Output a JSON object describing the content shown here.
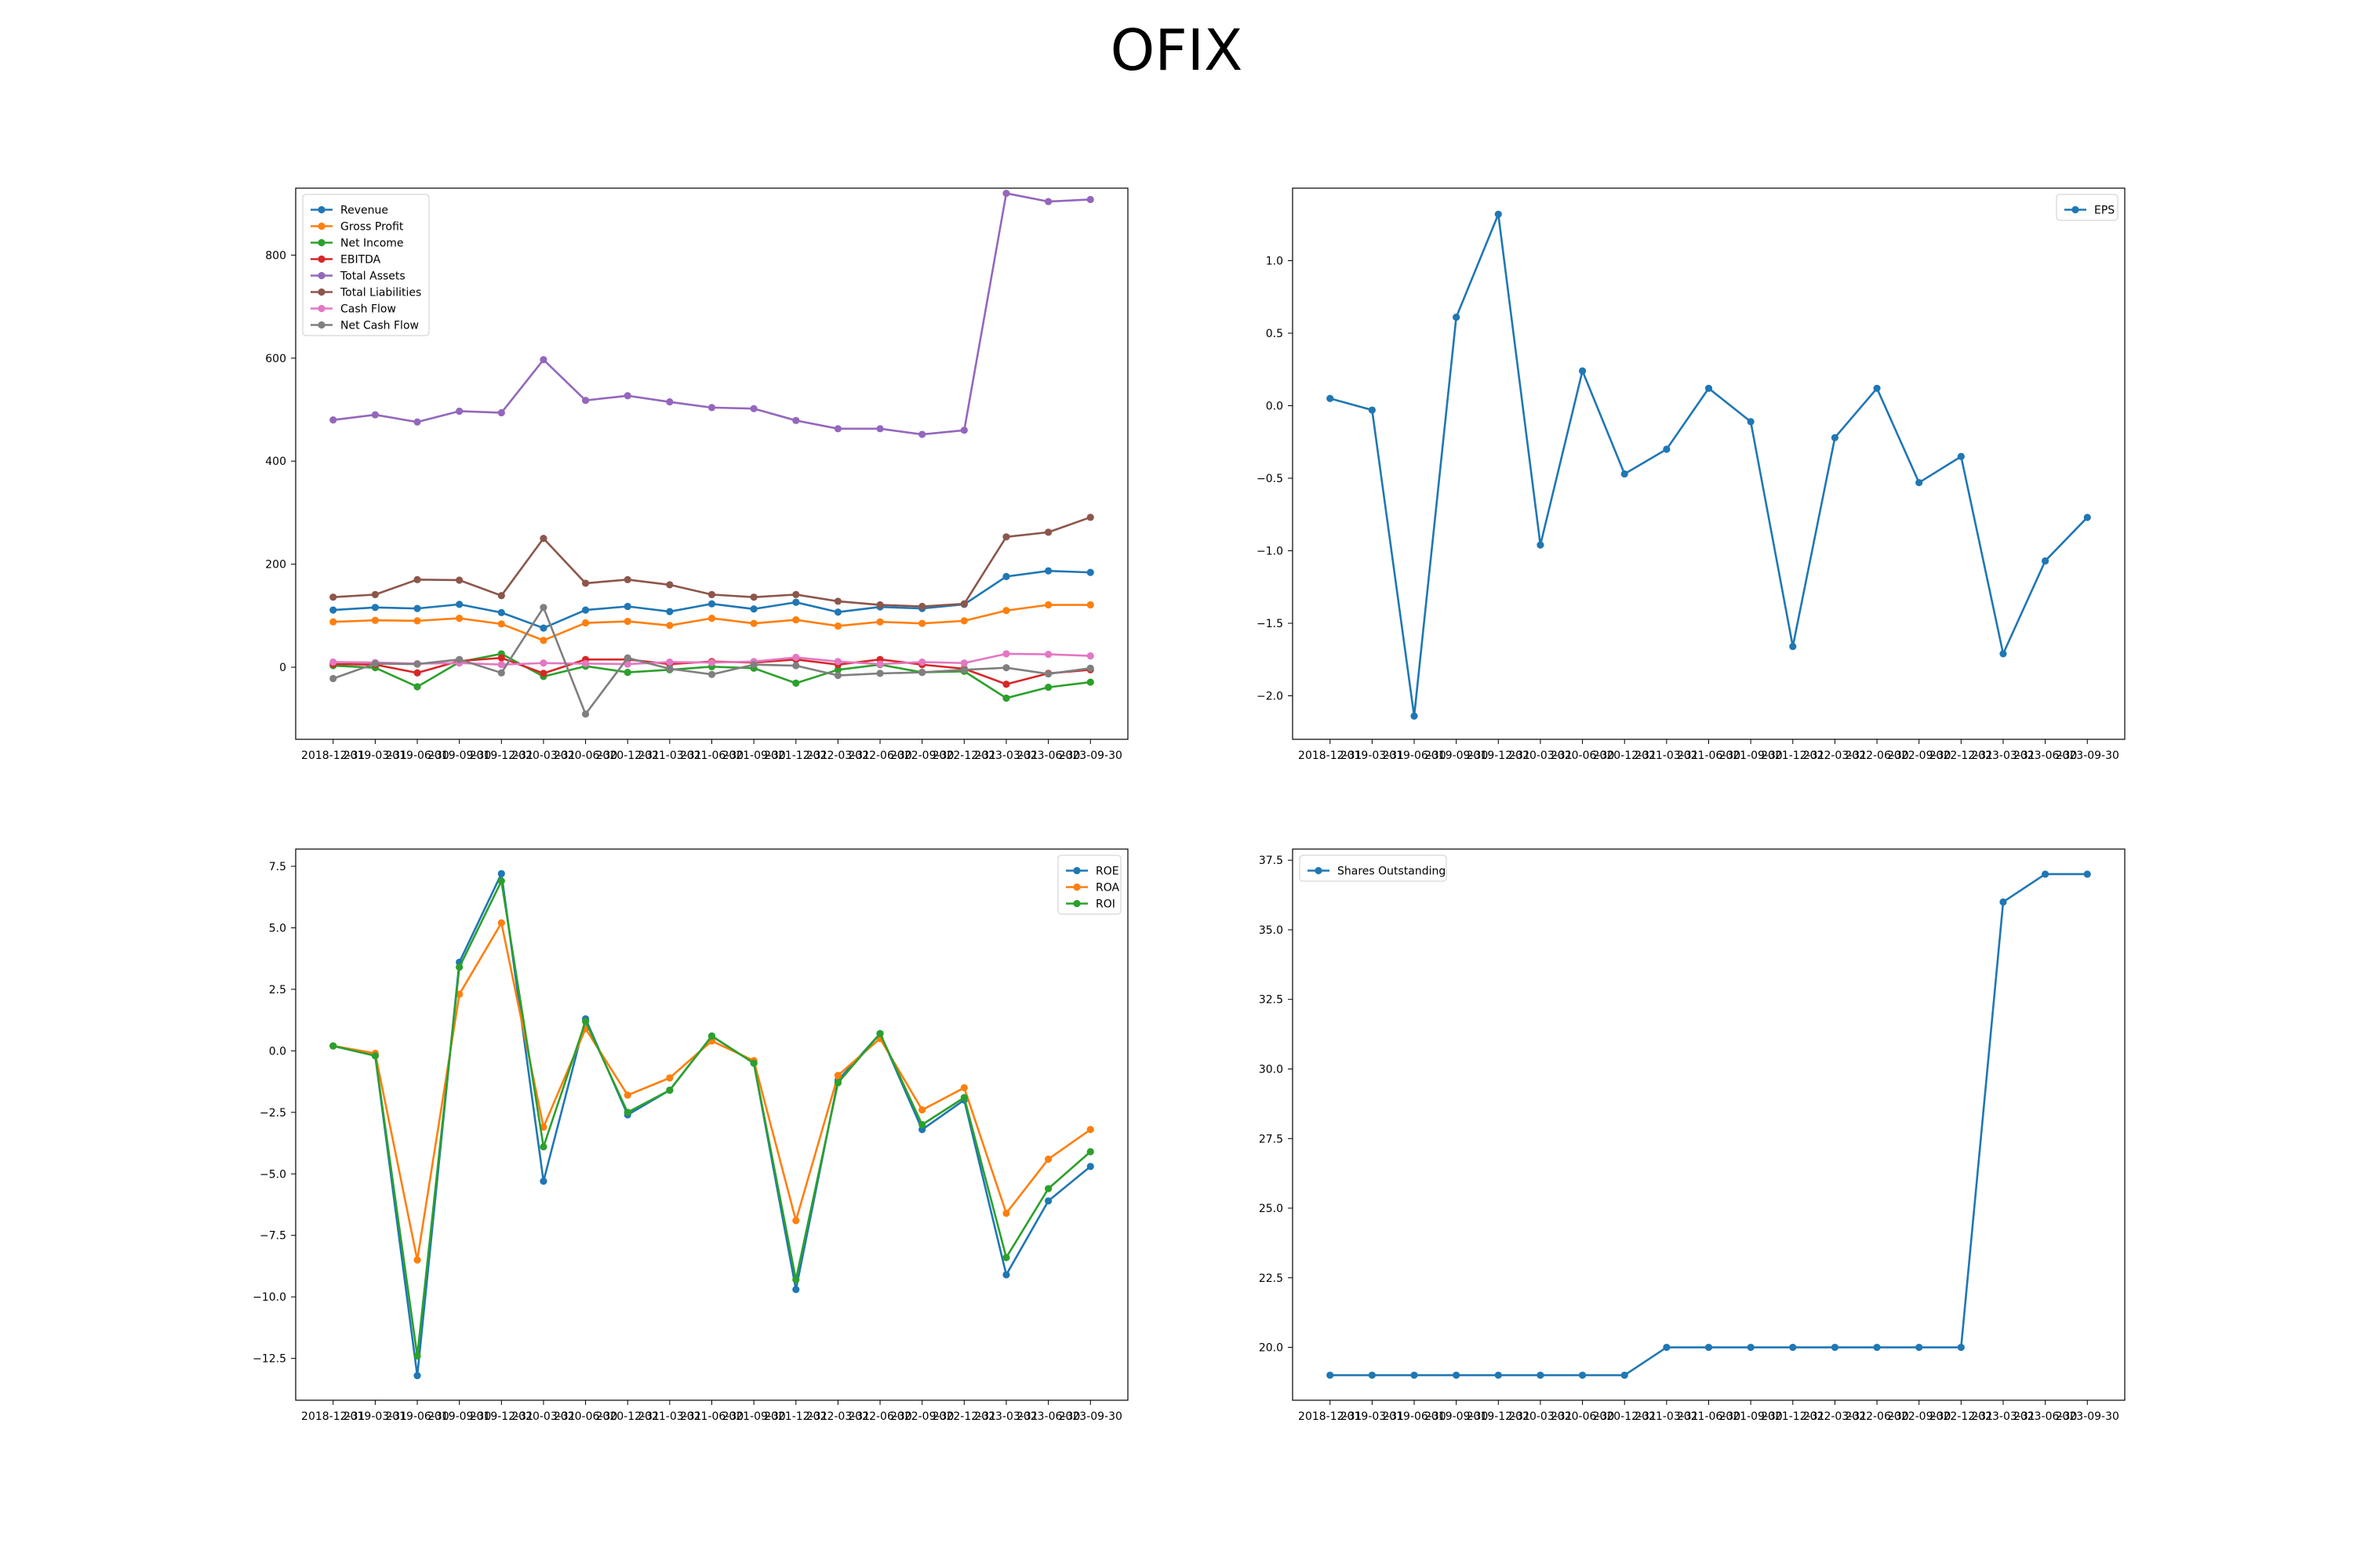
{
  "title": "OFIX",
  "chart_data": [
    {
      "type": "line",
      "title": "",
      "xlabel": "",
      "ylabel": "",
      "legend_position": "upper-left",
      "ylim": [
        -140,
        930
      ],
      "yticks": [
        0,
        200,
        400,
        600,
        800
      ],
      "categories": [
        "2018-12-31",
        "2019-03-31",
        "2019-06-30",
        "2019-09-30",
        "2019-12-31",
        "2020-03-31",
        "2020-06-30",
        "2020-12-31",
        "2021-03-31",
        "2021-06-30",
        "2021-09-30",
        "2021-12-31",
        "2022-03-31",
        "2022-06-30",
        "2022-09-30",
        "2022-12-31",
        "2023-03-31",
        "2023-06-30",
        "2023-09-30"
      ],
      "series": [
        {
          "name": "Revenue",
          "color": "#1f77b4",
          "values": [
            111,
            116,
            114,
            122,
            106,
            76,
            111,
            118,
            108,
            123,
            113,
            126,
            107,
            117,
            114,
            122,
            176,
            187,
            184
          ]
        },
        {
          "name": "Gross Profit",
          "color": "#ff7f0e",
          "values": [
            88,
            91,
            90,
            95,
            84,
            52,
            86,
            89,
            81,
            95,
            85,
            92,
            80,
            88,
            85,
            90,
            110,
            121,
            121
          ]
        },
        {
          "name": "Net Income",
          "color": "#2ca02c",
          "values": [
            3,
            -1,
            -38,
            10,
            26,
            -18,
            2,
            -10,
            -5,
            1,
            -2,
            -31,
            -5,
            5,
            -10,
            -8,
            -60,
            -39,
            -29
          ]
        },
        {
          "name": "EBITDA",
          "color": "#d62728",
          "values": [
            6,
            5,
            -11,
            12,
            18,
            -12,
            15,
            15,
            6,
            11,
            9,
            15,
            5,
            15,
            5,
            -3,
            -33,
            -12,
            -5
          ]
        },
        {
          "name": "Total Assets",
          "color": "#9467bd",
          "values": [
            480,
            490,
            476,
            497,
            494,
            597,
            518,
            527,
            515,
            504,
            502,
            479,
            463,
            463,
            452,
            460,
            920,
            904,
            908
          ]
        },
        {
          "name": "Total Liabilities",
          "color": "#8c564b",
          "values": [
            136,
            141,
            170,
            169,
            139,
            250,
            163,
            170,
            160,
            141,
            136,
            141,
            128,
            121,
            118,
            123,
            253,
            262,
            291
          ]
        },
        {
          "name": "Cash Flow",
          "color": "#e377c2",
          "values": [
            10,
            9,
            7,
            8,
            5,
            8,
            7,
            6,
            10,
            9,
            11,
            19,
            11,
            6,
            10,
            8,
            26,
            25,
            22
          ]
        },
        {
          "name": "Net Cash Flow",
          "color": "#7f7f7f",
          "values": [
            -22,
            7,
            6,
            15,
            -11,
            116,
            -91,
            18,
            -3,
            -14,
            5,
            3,
            -16,
            -12,
            -10,
            -5,
            -1,
            -13,
            -2
          ]
        }
      ]
    },
    {
      "type": "line",
      "title": "",
      "xlabel": "",
      "ylabel": "",
      "legend_position": "upper-right",
      "ylim": [
        -2.3,
        1.5
      ],
      "yticks": [
        -2.0,
        -1.5,
        -1.0,
        -0.5,
        0.0,
        0.5,
        1.0
      ],
      "categories": [
        "2018-12-31",
        "2019-03-31",
        "2019-06-30",
        "2019-09-30",
        "2019-12-31",
        "2020-03-31",
        "2020-06-30",
        "2020-12-31",
        "2021-03-31",
        "2021-06-30",
        "2021-09-30",
        "2021-12-31",
        "2022-03-31",
        "2022-06-30",
        "2022-09-30",
        "2022-12-31",
        "2023-03-31",
        "2023-06-30",
        "2023-09-30"
      ],
      "series": [
        {
          "name": "EPS",
          "color": "#1f77b4",
          "values": [
            0.05,
            -0.03,
            -2.14,
            0.61,
            1.32,
            -0.96,
            0.24,
            -0.47,
            -0.3,
            0.12,
            -0.11,
            -1.66,
            -0.22,
            0.12,
            -0.53,
            -0.35,
            -1.71,
            -1.07,
            -0.77
          ]
        }
      ]
    },
    {
      "type": "line",
      "title": "",
      "xlabel": "",
      "ylabel": "",
      "legend_position": "upper-right",
      "ylim": [
        -14.2,
        8.2
      ],
      "yticks": [
        -12.5,
        -10.0,
        -7.5,
        -5.0,
        -2.5,
        0.0,
        2.5,
        5.0,
        7.5
      ],
      "categories": [
        "2018-12-31",
        "2019-03-31",
        "2019-06-30",
        "2019-09-30",
        "2019-12-31",
        "2020-03-31",
        "2020-06-30",
        "2020-12-31",
        "2021-03-31",
        "2021-06-30",
        "2021-09-30",
        "2021-12-31",
        "2022-03-31",
        "2022-06-30",
        "2022-09-30",
        "2022-12-31",
        "2023-03-31",
        "2023-06-30",
        "2023-09-30"
      ],
      "series": [
        {
          "name": "ROE",
          "color": "#1f77b4",
          "values": [
            0.2,
            -0.2,
            -13.2,
            3.6,
            7.2,
            -5.3,
            1.3,
            -2.6,
            -1.6,
            0.6,
            -0.5,
            -9.7,
            -1.2,
            0.7,
            -3.2,
            -2.0,
            -9.1,
            -6.1,
            -4.7
          ]
        },
        {
          "name": "ROA",
          "color": "#ff7f0e",
          "values": [
            0.2,
            -0.1,
            -8.5,
            2.3,
            5.2,
            -3.1,
            0.9,
            -1.8,
            -1.1,
            0.4,
            -0.4,
            -6.9,
            -1.0,
            0.5,
            -2.4,
            -1.5,
            -6.6,
            -4.4,
            -3.2
          ]
        },
        {
          "name": "ROI",
          "color": "#2ca02c",
          "values": [
            0.2,
            -0.2,
            -12.4,
            3.4,
            6.9,
            -3.9,
            1.2,
            -2.5,
            -1.6,
            0.6,
            -0.5,
            -9.3,
            -1.3,
            0.7,
            -3.0,
            -1.9,
            -8.4,
            -5.6,
            -4.1
          ]
        }
      ]
    },
    {
      "type": "line",
      "title": "",
      "xlabel": "",
      "ylabel": "",
      "legend_position": "upper-left",
      "ylim": [
        18.1,
        37.9
      ],
      "yticks": [
        20.0,
        22.5,
        25.0,
        27.5,
        30.0,
        32.5,
        35.0,
        37.5
      ],
      "categories": [
        "2018-12-31",
        "2019-03-31",
        "2019-06-30",
        "2019-09-30",
        "2019-12-31",
        "2020-03-31",
        "2020-06-30",
        "2020-12-31",
        "2021-03-31",
        "2021-06-30",
        "2021-09-30",
        "2021-12-31",
        "2022-03-31",
        "2022-06-30",
        "2022-09-30",
        "2022-12-31",
        "2023-03-31",
        "2023-06-30",
        "2023-09-30"
      ],
      "series": [
        {
          "name": "Shares Outstanding",
          "color": "#1f77b4",
          "values": [
            19,
            19,
            19,
            19,
            19,
            19,
            19,
            19,
            20,
            20,
            20,
            20,
            20,
            20,
            20,
            20,
            36,
            37,
            37
          ]
        }
      ]
    }
  ]
}
